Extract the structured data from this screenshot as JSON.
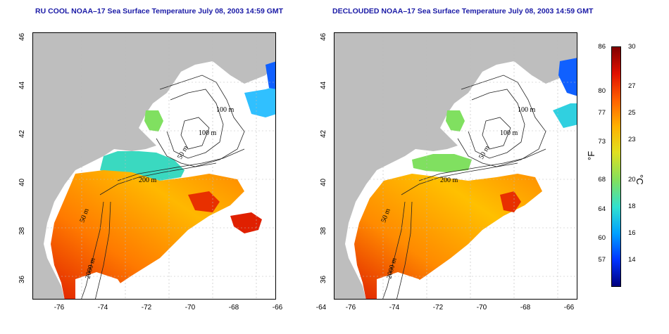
{
  "panels": [
    {
      "title": "RU COOL NOAA–17 Sea Surface Temperature July 08, 2003 14:59 GMT"
    },
    {
      "title": "DECLOUDED NOAA–17 Sea Surface Temperature July 08, 2003 14:59 GMT"
    }
  ],
  "axes": {
    "x_ticks": [
      "-76",
      "-74",
      "-72",
      "-70",
      "-68",
      "-66",
      "-64"
    ],
    "y_ticks": [
      "46",
      "44",
      "42",
      "40",
      "38",
      "36"
    ]
  },
  "contours": {
    "c100a": "100 m",
    "c100b": "100 m",
    "c50a": "50 m",
    "c200": "200 m",
    "c50b": "50 m",
    "c2000": "2000 m"
  },
  "colorbar": {
    "fahrenheit_label": "°F",
    "celsius_label": "°C",
    "fahrenheit_ticks": [
      "86",
      "80",
      "77",
      "73",
      "68",
      "64",
      "60",
      "57"
    ],
    "celsius_ticks": [
      "30",
      "27",
      "25",
      "23",
      "20",
      "18",
      "16",
      "14"
    ],
    "colors": [
      "#00007f",
      "#0033ff",
      "#00a0ff",
      "#30e0d0",
      "#80e060",
      "#e0e020",
      "#ffb000",
      "#ff6000",
      "#e01000",
      "#800000"
    ]
  }
}
